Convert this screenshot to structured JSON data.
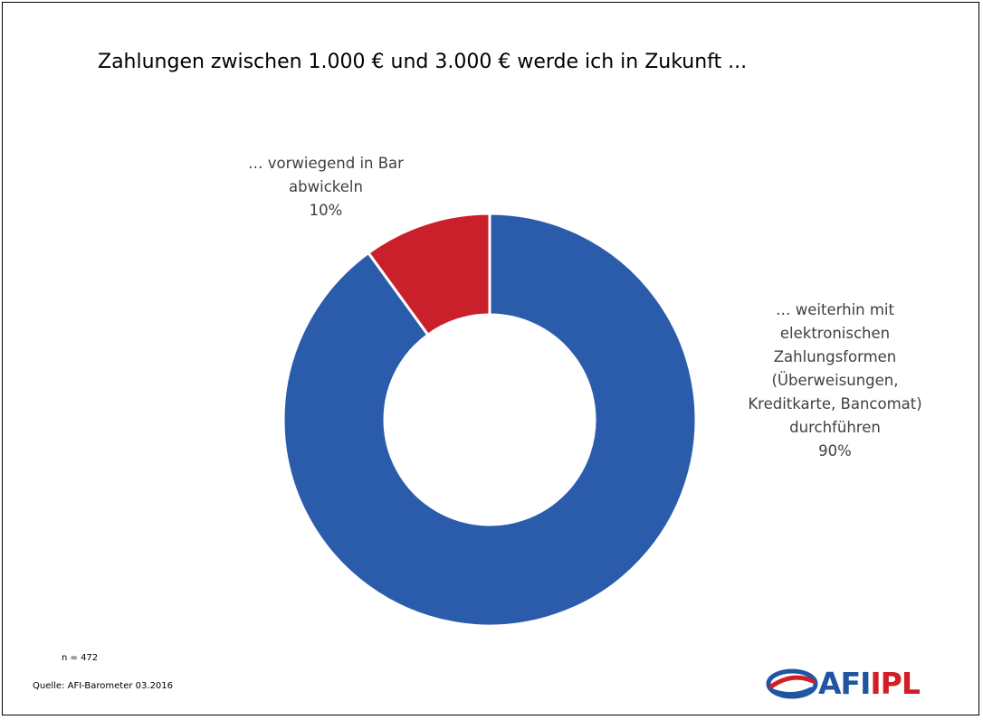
{
  "chart_data": {
    "type": "pie",
    "donut": true,
    "title": "Zahlungen zwischen 1.000 € und 3.000 € werde ich in Zukunft ...",
    "slices": [
      {
        "label_lines": [
          "… weiterhin mit",
          "elektronischen",
          "Zahlungsformen",
          "(Überweisungen,",
          "Kreditkarte, Bancomat)",
          "durchführen"
        ],
        "value": 90,
        "value_label": "90%",
        "color": "#2b5cab"
      },
      {
        "label_lines": [
          "… vorwiegend in Bar",
          "abwickeln"
        ],
        "value": 10,
        "value_label": "10%",
        "color": "#c9202c"
      }
    ],
    "start_angle_deg": 0,
    "direction": "clockwise",
    "legend": "none"
  },
  "notes": {
    "sample": "n = 472",
    "source": "Quelle: AFI-Barometer 03.2016"
  },
  "logo": {
    "text_part1": "AFI",
    "text_part2": "IPL",
    "color_primary": "#1f55a3",
    "color_secondary": "#d11f27"
  }
}
